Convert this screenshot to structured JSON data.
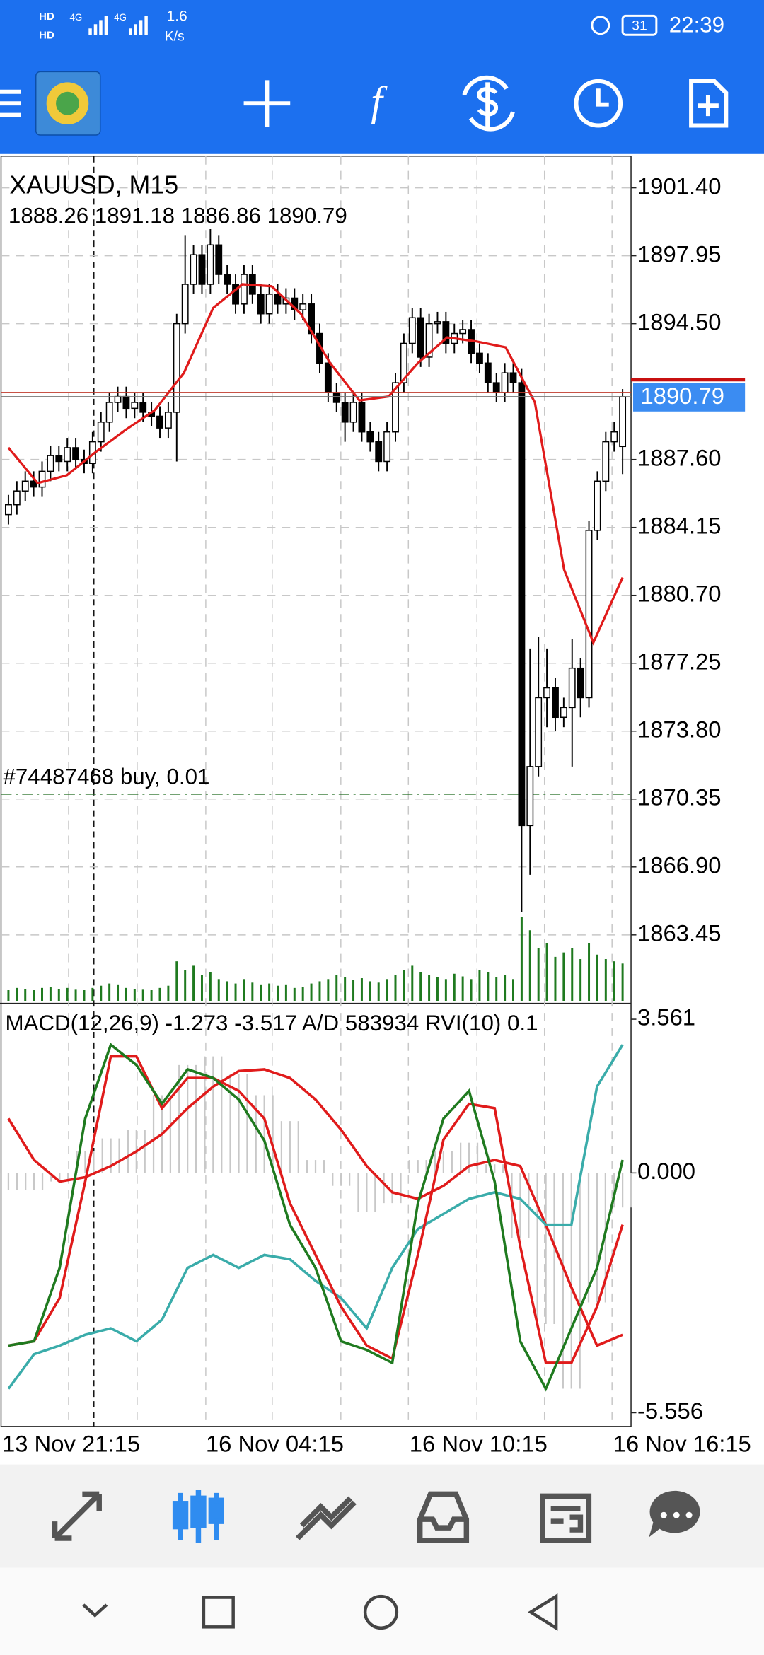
{
  "status_bar": {
    "sim1": "HD",
    "network1": "4G",
    "sim2": "HD",
    "network2": "4G",
    "speed": "1.6",
    "speed_unit": "K/s",
    "battery": "31",
    "time": "22:39"
  },
  "toolbar": {
    "indicators_icon": "f"
  },
  "chart_data": {
    "type": "candlestick",
    "title": "XAUUSD, M15",
    "ohlc_label": "1888.26 1891.18 1886.86 1890.79",
    "ylim": [
      1859.97,
      1903.01
    ],
    "yticks": [
      {
        "value": 1901.4,
        "label": "1901.40"
      },
      1897.95,
      {
        "value": 1894.5,
        "label": "1894.50"
      },
      {
        "value": 1887.6,
        "label": "1887.60"
      },
      1884.15,
      {
        "value": 1880.7,
        "label": "1880.70"
      },
      1877.25,
      {
        "value": 1873.8,
        "label": "1873.80"
      },
      1870.35,
      {
        "value": 1866.9,
        "label": "1866.90"
      },
      1863.45
    ],
    "grid": true,
    "open": [
      1884.8,
      1885.3,
      1886.0,
      1886.5,
      1886.2,
      1887.0,
      1887.8,
      1887.5,
      1888.2,
      1887.6,
      1887.4,
      1888.5,
      1889.5,
      1890.5,
      1890.8,
      1890.2,
      1890.5,
      1890.0,
      1889.8,
      1889.2,
      1890.0,
      1894.5,
      1896.5,
      1898.0,
      1896.5,
      1898.5,
      1897.0,
      1896.5,
      1895.5,
      1897.0,
      1896.0,
      1895.0,
      1896.0,
      1895.5,
      1895.8,
      1895.2,
      1895.5,
      1894.0,
      1892.5,
      1891.0,
      1890.5,
      1889.5,
      1890.5,
      1889.0,
      1888.5,
      1887.5,
      1889.0,
      1891.5,
      1893.5,
      1894.8,
      1892.8,
      1894.5,
      1894.6,
      1893.5,
      1894.0,
      1894.2,
      1893.0,
      1892.5,
      1891.5,
      1891.0,
      1892.0,
      1891.5,
      1869.0,
      1872.0,
      1875.5,
      1876.0,
      1874.5,
      1875.0,
      1877.0,
      1875.5,
      1884.0,
      1886.5,
      1888.5,
      1888.26
    ],
    "high": [
      1885.8,
      1886.5,
      1887.0,
      1887.0,
      1887.5,
      1888.3,
      1888.3,
      1888.7,
      1888.7,
      1888.1,
      1889.0,
      1890.0,
      1891.0,
      1891.3,
      1891.3,
      1891.0,
      1891.0,
      1890.5,
      1890.3,
      1890.5,
      1895.0,
      1899.0,
      1898.5,
      1898.5,
      1899.3,
      1899.0,
      1897.5,
      1897.0,
      1897.5,
      1897.5,
      1896.5,
      1896.5,
      1896.5,
      1896.3,
      1896.3,
      1896.0,
      1896.0,
      1894.5,
      1893.0,
      1891.5,
      1891.0,
      1891.0,
      1891.0,
      1889.5,
      1889.0,
      1889.5,
      1892.0,
      1894.0,
      1895.3,
      1895.3,
      1895.0,
      1895.1,
      1895.1,
      1894.5,
      1894.7,
      1894.7,
      1893.5,
      1893.0,
      1892.0,
      1892.5,
      1892.5,
      1892.2,
      1878.0,
      1878.6,
      1878.0,
      1876.5,
      1875.5,
      1878.5,
      1877.5,
      1884.5,
      1887.0,
      1889.0,
      1889.5,
      1891.18
    ],
    "low": [
      1884.3,
      1884.8,
      1885.5,
      1885.7,
      1885.7,
      1886.5,
      1887.0,
      1887.0,
      1887.1,
      1886.9,
      1886.9,
      1888.0,
      1889.0,
      1890.0,
      1889.7,
      1889.7,
      1889.5,
      1889.3,
      1888.7,
      1888.7,
      1887.5,
      1894.0,
      1896.0,
      1896.0,
      1896.0,
      1896.5,
      1896.0,
      1895.0,
      1895.0,
      1895.5,
      1894.5,
      1894.5,
      1895.0,
      1895.0,
      1894.7,
      1894.7,
      1893.5,
      1892.0,
      1890.5,
      1890.0,
      1888.5,
      1889.0,
      1888.5,
      1888.0,
      1887.0,
      1887.0,
      1888.5,
      1891.0,
      1893.0,
      1892.3,
      1892.3,
      1894.0,
      1893.0,
      1893.0,
      1893.5,
      1892.5,
      1892.0,
      1891.0,
      1890.5,
      1890.5,
      1891.0,
      1864.6,
      1866.5,
      1871.5,
      1874.0,
      1873.8,
      1874.0,
      1872.0,
      1874.5,
      1875.0,
      1883.5,
      1886.0,
      1888.0,
      1886.86
    ],
    "close": [
      1885.3,
      1886.0,
      1886.5,
      1886.2,
      1887.0,
      1887.8,
      1887.5,
      1888.2,
      1887.6,
      1887.4,
      1888.5,
      1889.5,
      1890.5,
      1890.8,
      1890.2,
      1890.5,
      1890.0,
      1889.8,
      1889.2,
      1890.0,
      1894.5,
      1896.5,
      1898.0,
      1896.5,
      1898.5,
      1897.0,
      1896.5,
      1895.5,
      1897.0,
      1896.0,
      1895.0,
      1896.0,
      1895.5,
      1895.8,
      1895.2,
      1895.5,
      1894.0,
      1892.5,
      1891.0,
      1890.5,
      1889.5,
      1890.5,
      1889.0,
      1888.5,
      1887.5,
      1889.0,
      1891.5,
      1893.5,
      1894.8,
      1892.8,
      1894.5,
      1894.6,
      1893.5,
      1894.0,
      1894.2,
      1893.0,
      1892.5,
      1891.5,
      1891.0,
      1892.0,
      1891.5,
      1869.0,
      1872.0,
      1875.5,
      1876.0,
      1874.5,
      1875.0,
      1877.0,
      1875.5,
      1884.0,
      1886.5,
      1888.5,
      1889.0,
      1890.79
    ],
    "volumes": {
      "color": "#1f7a1f",
      "values": [
        250,
        300,
        280,
        250,
        300,
        320,
        280,
        300,
        260,
        250,
        300,
        350,
        400,
        380,
        300,
        280,
        260,
        250,
        300,
        350,
        900,
        700,
        800,
        600,
        650,
        500,
        450,
        400,
        500,
        420,
        380,
        400,
        350,
        380,
        300,
        320,
        400,
        450,
        500,
        600,
        550,
        480,
        520,
        450,
        420,
        500,
        600,
        700,
        800,
        650,
        600,
        550,
        500,
        620,
        560,
        500,
        700,
        650,
        550,
        600,
        500,
        1900,
        1600,
        1200,
        1300,
        1000,
        1100,
        1200,
        950,
        1300,
        1050,
        950,
        900,
        850
      ]
    },
    "ma": {
      "color": "#e01b1b",
      "values": [
        1888.2,
        1886.4,
        1886.8,
        1888.0,
        1889.1,
        1890.1,
        1892.0,
        1895.3,
        1896.5,
        1896.4,
        1895.0,
        1892.5,
        1890.6,
        1890.8,
        1892.5,
        1893.8,
        1893.6,
        1893.3,
        1890.5,
        1882.0,
        1878.3,
        1881.6
      ]
    },
    "bid": 1890.79,
    "order": {
      "label": "#74487468 buy, 0.01",
      "price": 1870.6,
      "color": "#1f6b1f"
    },
    "xtick_labels": [
      "13 Nov 21:15",
      "16 Nov 04:15",
      "16 Nov 10:15",
      "16 Nov 16:15"
    ],
    "indicator": {
      "title": "MACD(12,26,9) -1.273 -3.517 A/D 583934 RVI(10) 0.1",
      "y2lim": [
        -5.874,
        3.879
      ],
      "y2ticks": [
        3.561,
        {
          "value": 0,
          "label": "0.000"
        },
        -5.556
      ],
      "histogram": {
        "color": "#c8c8c8",
        "values": [
          -0.4,
          -0.4,
          -0.2,
          0.5,
          0.8,
          1.0,
          1.8,
          2.5,
          2.7,
          2.3,
          1.8,
          1.2,
          0.3,
          -0.3,
          -0.9,
          -0.7,
          0.3,
          0.5,
          0.7,
          0.2,
          -1.5,
          -3.5,
          -5.0,
          -3.0,
          -0.8
        ]
      },
      "series": [
        {
          "color": "#e01b1b",
          "values": [
            1.26,
            0.3,
            -0.2,
            -0.1,
            0.16,
            0.5,
            0.9,
            1.5,
            2.0,
            2.36,
            2.4,
            2.2,
            1.7,
            1.0,
            0.16,
            -0.45,
            -0.6,
            -0.3,
            0.16,
            0.3,
            0.16,
            -1.2,
            -2.65,
            -4.0,
            -3.75
          ]
        },
        {
          "color": "#3aacaa",
          "values": [
            -5.0,
            -4.2,
            -4.0,
            -3.75,
            -3.6,
            -3.9,
            -3.4,
            -2.2,
            -1.9,
            -2.2,
            -1.9,
            -2.0,
            -2.5,
            -2.9,
            -3.6,
            -2.2,
            -1.3,
            -0.95,
            -0.6,
            -0.45,
            -0.6,
            -1.2,
            -1.2,
            2.0,
            2.97
          ]
        },
        {
          "color": "#e01b1b",
          "values": [
            -4.0,
            -3.9,
            -2.9,
            -0.2,
            2.7,
            2.7,
            1.5,
            2.2,
            2.2,
            1.9,
            1.26,
            -0.7,
            -1.9,
            -3.1,
            -4.0,
            -4.3,
            -1.9,
            0.77,
            1.6,
            1.5,
            -1.7,
            -4.4,
            -4.4,
            -3.1,
            -1.2
          ]
        },
        {
          "color": "#1f7a1f",
          "values": [
            -4.0,
            -3.9,
            -2.2,
            1.26,
            2.97,
            2.5,
            1.6,
            2.4,
            2.2,
            1.7,
            0.75,
            -1.2,
            -2.2,
            -3.9,
            -4.1,
            -4.4,
            -0.7,
            1.26,
            1.9,
            -0.2,
            -3.9,
            -5.0,
            -3.6,
            -2.2,
            0.3
          ]
        }
      ]
    }
  }
}
